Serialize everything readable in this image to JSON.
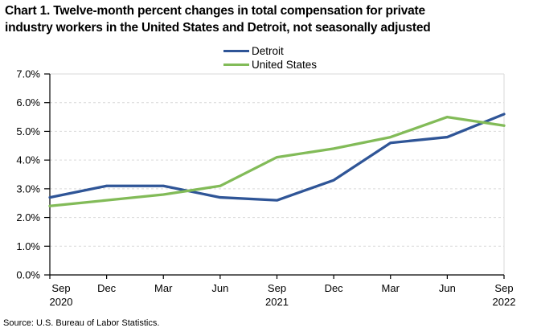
{
  "title_lines": [
    "Chart 1. Twelve-month percent changes in total compensation for private",
    "industry workers in the United States and Detroit, not seasonally adjusted"
  ],
  "source": "Source: U.S. Bureau of Labor Statistics.",
  "chart_data": {
    "type": "line",
    "title": "Chart 1. Twelve-month percent changes in total compensation for private industry workers in the United States and Detroit, not seasonally adjusted",
    "categories": [
      "Sep 2020",
      "Dec 2020",
      "Mar 2021",
      "Jun 2021",
      "Sep 2021",
      "Dec 2021",
      "Mar 2022",
      "Jun 2022",
      "Sep 2022"
    ],
    "x_ticks": [
      {
        "label": "Sep",
        "year": "2020"
      },
      {
        "label": "Dec",
        "year": ""
      },
      {
        "label": "Mar",
        "year": ""
      },
      {
        "label": "Jun",
        "year": ""
      },
      {
        "label": "Sep",
        "year": "2021"
      },
      {
        "label": "Dec",
        "year": ""
      },
      {
        "label": "Mar",
        "year": ""
      },
      {
        "label": "Jun",
        "year": ""
      },
      {
        "label": "Sep",
        "year": "2022"
      }
    ],
    "series": [
      {
        "name": "Detroit",
        "color": "#2F5597",
        "values": [
          2.7,
          3.1,
          3.1,
          2.7,
          2.6,
          3.3,
          4.6,
          4.8,
          5.6
        ]
      },
      {
        "name": "United States",
        "color": "#82BB58",
        "values": [
          2.4,
          2.6,
          2.8,
          3.1,
          4.1,
          4.4,
          4.8,
          5.5,
          5.2
        ]
      }
    ],
    "ylim": [
      0,
      7
    ],
    "y_tick_step": 1,
    "y_tick_suffix": "%",
    "grid": {
      "horizontal": true,
      "style": "dashed",
      "color": "#D9D9D9"
    },
    "axis_color": "#000000",
    "legend_position": "top-center"
  }
}
